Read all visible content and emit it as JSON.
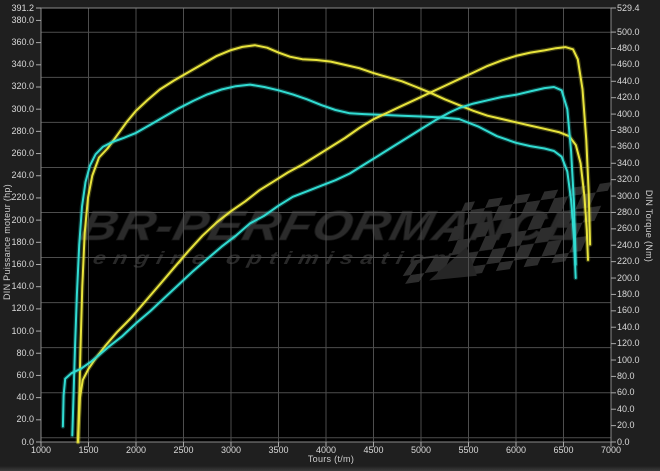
{
  "watermark": {
    "line1": "BR-PERFORMANCE",
    "line2": "engine optimisation"
  },
  "colors": {
    "background_margin": "#1f1f1f",
    "plot_background": "#000000",
    "gridline": "#4d4d4d",
    "frame": "#8a8a8a",
    "tick_text": "#d9d9d9",
    "tuned_curve": "#e8e43c",
    "original_curve": "#31dcd2",
    "watermark": "#2b2b2b"
  },
  "chart_data": {
    "type": "line",
    "title": "",
    "xlabel": "Tours (t/m)",
    "ylabel_left": "DIN Puissance moteur (hp)",
    "ylabel_right": "DIN Torque (Nm)",
    "x_range": [
      1000,
      7000
    ],
    "y_left_range": [
      0,
      391.2
    ],
    "y_right_range": [
      0,
      529.4
    ],
    "grid": "on",
    "legend": "none",
    "x_ticks": [
      1000,
      1500,
      2000,
      2500,
      3000,
      3500,
      4000,
      4500,
      5000,
      5500,
      6000,
      6500,
      7000
    ],
    "y_left_ticks": [
      391.2,
      380,
      360,
      340,
      320,
      300,
      280,
      260,
      240,
      220,
      200,
      180,
      160,
      140,
      120,
      100,
      80,
      60,
      40,
      20,
      0
    ],
    "y_right_ticks": [
      529.4,
      500,
      480,
      460,
      440,
      420,
      400,
      380,
      360,
      340,
      320,
      300,
      280,
      260,
      240,
      220,
      200,
      180,
      160,
      140,
      120,
      100,
      80,
      60,
      40,
      20,
      0
    ],
    "series": [
      {
        "name": "tuned-torque",
        "axis": "right",
        "unit": "Nm",
        "color": "#e8e43c",
        "points": [
          [
            1390,
            0
          ],
          [
            1400,
            40
          ],
          [
            1415,
            110
          ],
          [
            1435,
            190
          ],
          [
            1460,
            255
          ],
          [
            1495,
            298
          ],
          [
            1540,
            325
          ],
          [
            1610,
            347
          ],
          [
            1700,
            358
          ],
          [
            1800,
            374
          ],
          [
            1900,
            390
          ],
          [
            2000,
            404
          ],
          [
            2120,
            417
          ],
          [
            2250,
            430
          ],
          [
            2400,
            441
          ],
          [
            2550,
            451
          ],
          [
            2700,
            461
          ],
          [
            2850,
            471
          ],
          [
            3000,
            478
          ],
          [
            3120,
            482
          ],
          [
            3250,
            484
          ],
          [
            3380,
            481
          ],
          [
            3500,
            475
          ],
          [
            3620,
            470
          ],
          [
            3750,
            467
          ],
          [
            3900,
            466
          ],
          [
            4050,
            464
          ],
          [
            4200,
            460
          ],
          [
            4350,
            456
          ],
          [
            4500,
            450
          ],
          [
            4650,
            445
          ],
          [
            4800,
            440
          ],
          [
            4950,
            433
          ],
          [
            5100,
            426
          ],
          [
            5250,
            418
          ],
          [
            5400,
            411
          ],
          [
            5550,
            404
          ],
          [
            5700,
            398
          ],
          [
            5850,
            394
          ],
          [
            6000,
            390
          ],
          [
            6150,
            386
          ],
          [
            6300,
            382
          ],
          [
            6450,
            378
          ],
          [
            6560,
            373
          ],
          [
            6630,
            362
          ],
          [
            6680,
            340
          ],
          [
            6720,
            300
          ],
          [
            6745,
            258
          ],
          [
            6758,
            222
          ]
        ]
      },
      {
        "name": "original-torque",
        "axis": "right",
        "unit": "Nm",
        "color": "#31dcd2",
        "points": [
          [
            1330,
            8
          ],
          [
            1342,
            55
          ],
          [
            1358,
            115
          ],
          [
            1378,
            180
          ],
          [
            1402,
            240
          ],
          [
            1432,
            287
          ],
          [
            1468,
            317
          ],
          [
            1515,
            337
          ],
          [
            1575,
            351
          ],
          [
            1650,
            360
          ],
          [
            1750,
            366
          ],
          [
            1870,
            371
          ],
          [
            2000,
            377
          ],
          [
            2150,
            387
          ],
          [
            2300,
            397
          ],
          [
            2450,
            407
          ],
          [
            2600,
            416
          ],
          [
            2750,
            424
          ],
          [
            2900,
            430
          ],
          [
            3050,
            434
          ],
          [
            3200,
            436
          ],
          [
            3350,
            433
          ],
          [
            3500,
            429
          ],
          [
            3650,
            424
          ],
          [
            3800,
            418
          ],
          [
            3950,
            411
          ],
          [
            4100,
            405
          ],
          [
            4250,
            401
          ],
          [
            4400,
            400
          ],
          [
            4600,
            399
          ],
          [
            4800,
            398
          ],
          [
            5000,
            397
          ],
          [
            5200,
            396
          ],
          [
            5400,
            394
          ],
          [
            5600,
            385
          ],
          [
            5800,
            373
          ],
          [
            6000,
            365
          ],
          [
            6150,
            361
          ],
          [
            6300,
            358
          ],
          [
            6400,
            355
          ],
          [
            6480,
            348
          ],
          [
            6540,
            330
          ],
          [
            6580,
            295
          ],
          [
            6610,
            248
          ],
          [
            6628,
            200
          ]
        ]
      },
      {
        "name": "tuned-power",
        "axis": "left",
        "unit": "hp",
        "color": "#e8e43c",
        "points": [
          [
            1390,
            0
          ],
          [
            1398,
            18
          ],
          [
            1410,
            40
          ],
          [
            1440,
            56
          ],
          [
            1500,
            66
          ],
          [
            1580,
            76
          ],
          [
            1680,
            87
          ],
          [
            1800,
            99
          ],
          [
            1950,
            112
          ],
          [
            2100,
            127
          ],
          [
            2250,
            142
          ],
          [
            2400,
            157
          ],
          [
            2550,
            172
          ],
          [
            2700,
            186
          ],
          [
            2850,
            198
          ],
          [
            3000,
            208
          ],
          [
            3150,
            217
          ],
          [
            3300,
            227
          ],
          [
            3450,
            235
          ],
          [
            3600,
            243
          ],
          [
            3750,
            250
          ],
          [
            3900,
            258
          ],
          [
            4050,
            266
          ],
          [
            4200,
            274
          ],
          [
            4350,
            283
          ],
          [
            4500,
            291
          ],
          [
            4650,
            297
          ],
          [
            4800,
            303
          ],
          [
            4950,
            309
          ],
          [
            5100,
            315
          ],
          [
            5250,
            321
          ],
          [
            5400,
            327
          ],
          [
            5550,
            333
          ],
          [
            5700,
            339
          ],
          [
            5850,
            344
          ],
          [
            6000,
            348
          ],
          [
            6150,
            351
          ],
          [
            6300,
            353
          ],
          [
            6420,
            355
          ],
          [
            6520,
            356
          ],
          [
            6600,
            354
          ],
          [
            6650,
            345
          ],
          [
            6700,
            318
          ],
          [
            6740,
            272
          ],
          [
            6765,
            225
          ],
          [
            6780,
            178
          ]
        ]
      },
      {
        "name": "original-power",
        "axis": "left",
        "unit": "hp",
        "color": "#31dcd2",
        "points": [
          [
            1230,
            14
          ],
          [
            1238,
            42
          ],
          [
            1255,
            57
          ],
          [
            1320,
            62
          ],
          [
            1420,
            66
          ],
          [
            1520,
            72
          ],
          [
            1620,
            79
          ],
          [
            1730,
            87
          ],
          [
            1850,
            95
          ],
          [
            2000,
            107
          ],
          [
            2150,
            118
          ],
          [
            2300,
            130
          ],
          [
            2450,
            142
          ],
          [
            2600,
            154
          ],
          [
            2750,
            165
          ],
          [
            2900,
            176
          ],
          [
            3050,
            186
          ],
          [
            3200,
            197
          ],
          [
            3350,
            204
          ],
          [
            3500,
            213
          ],
          [
            3650,
            221
          ],
          [
            3800,
            226
          ],
          [
            3950,
            231
          ],
          [
            4100,
            236
          ],
          [
            4250,
            242
          ],
          [
            4400,
            250
          ],
          [
            4550,
            258
          ],
          [
            4700,
            266
          ],
          [
            4850,
            274
          ],
          [
            5000,
            282
          ],
          [
            5150,
            290
          ],
          [
            5300,
            297
          ],
          [
            5400,
            301
          ],
          [
            5550,
            305
          ],
          [
            5700,
            308
          ],
          [
            5850,
            311
          ],
          [
            6000,
            313
          ],
          [
            6150,
            316
          ],
          [
            6300,
            319
          ],
          [
            6400,
            320
          ],
          [
            6480,
            317
          ],
          [
            6540,
            300
          ],
          [
            6580,
            262
          ],
          [
            6610,
            215
          ],
          [
            6628,
            160
          ]
        ]
      }
    ]
  }
}
